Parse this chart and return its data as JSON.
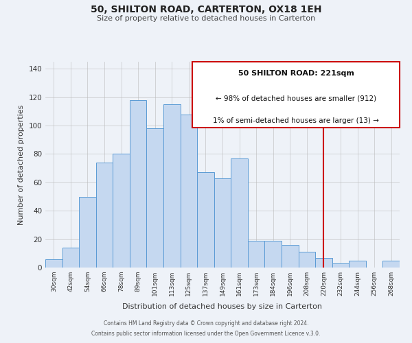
{
  "title": "50, SHILTON ROAD, CARTERTON, OX18 1EH",
  "subtitle": "Size of property relative to detached houses in Carterton",
  "xlabel": "Distribution of detached houses by size in Carterton",
  "ylabel": "Number of detached properties",
  "bar_labels": [
    "30sqm",
    "42sqm",
    "54sqm",
    "66sqm",
    "78sqm",
    "89sqm",
    "101sqm",
    "113sqm",
    "125sqm",
    "137sqm",
    "149sqm",
    "161sqm",
    "173sqm",
    "184sqm",
    "196sqm",
    "208sqm",
    "220sqm",
    "232sqm",
    "244sqm",
    "256sqm",
    "268sqm"
  ],
  "bar_heights": [
    6,
    14,
    50,
    74,
    80,
    118,
    98,
    115,
    108,
    67,
    63,
    77,
    19,
    19,
    16,
    11,
    7,
    3,
    5,
    0,
    5
  ],
  "bar_color": "#c5d8f0",
  "bar_edge_color": "#5b9bd5",
  "ylim": [
    0,
    145
  ],
  "yticks": [
    0,
    20,
    40,
    60,
    80,
    100,
    120,
    140
  ],
  "vline_x_index": 16,
  "vline_color": "#cc0000",
  "annotation_title": "50 SHILTON ROAD: 221sqm",
  "annotation_line1": "← 98% of detached houses are smaller (912)",
  "annotation_line2": "1% of semi-detached houses are larger (13) →",
  "annotation_box_color": "#cc0000",
  "footer_line1": "Contains HM Land Registry data © Crown copyright and database right 2024.",
  "footer_line2": "Contains public sector information licensed under the Open Government Licence v.3.0.",
  "background_color": "#eef2f8"
}
